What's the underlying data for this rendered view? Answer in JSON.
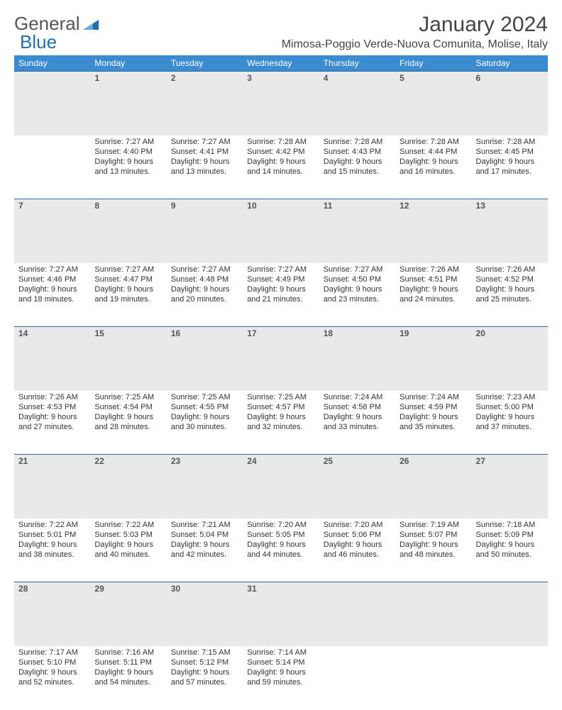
{
  "brand": {
    "part1": "General",
    "part2": "Blue"
  },
  "title": "January 2024",
  "location": "Mimosa-Poggio Verde-Nuova Comunita, Molise, Italy",
  "colors": {
    "header_bg": "#3b8bd0",
    "rule": "#2f6aa0",
    "daynum_bg": "#e9e9e9",
    "brand_blue": "#1f6fb2"
  },
  "weekdays": [
    "Sunday",
    "Monday",
    "Tuesday",
    "Wednesday",
    "Thursday",
    "Friday",
    "Saturday"
  ],
  "weeks": [
    [
      null,
      {
        "n": "1",
        "sr": "7:27 AM",
        "ss": "4:40 PM",
        "dl": "9 hours and 13 minutes."
      },
      {
        "n": "2",
        "sr": "7:27 AM",
        "ss": "4:41 PM",
        "dl": "9 hours and 13 minutes."
      },
      {
        "n": "3",
        "sr": "7:28 AM",
        "ss": "4:42 PM",
        "dl": "9 hours and 14 minutes."
      },
      {
        "n": "4",
        "sr": "7:28 AM",
        "ss": "4:43 PM",
        "dl": "9 hours and 15 minutes."
      },
      {
        "n": "5",
        "sr": "7:28 AM",
        "ss": "4:44 PM",
        "dl": "9 hours and 16 minutes."
      },
      {
        "n": "6",
        "sr": "7:28 AM",
        "ss": "4:45 PM",
        "dl": "9 hours and 17 minutes."
      }
    ],
    [
      {
        "n": "7",
        "sr": "7:27 AM",
        "ss": "4:46 PM",
        "dl": "9 hours and 18 minutes."
      },
      {
        "n": "8",
        "sr": "7:27 AM",
        "ss": "4:47 PM",
        "dl": "9 hours and 19 minutes."
      },
      {
        "n": "9",
        "sr": "7:27 AM",
        "ss": "4:48 PM",
        "dl": "9 hours and 20 minutes."
      },
      {
        "n": "10",
        "sr": "7:27 AM",
        "ss": "4:49 PM",
        "dl": "9 hours and 21 minutes."
      },
      {
        "n": "11",
        "sr": "7:27 AM",
        "ss": "4:50 PM",
        "dl": "9 hours and 23 minutes."
      },
      {
        "n": "12",
        "sr": "7:26 AM",
        "ss": "4:51 PM",
        "dl": "9 hours and 24 minutes."
      },
      {
        "n": "13",
        "sr": "7:26 AM",
        "ss": "4:52 PM",
        "dl": "9 hours and 25 minutes."
      }
    ],
    [
      {
        "n": "14",
        "sr": "7:26 AM",
        "ss": "4:53 PM",
        "dl": "9 hours and 27 minutes."
      },
      {
        "n": "15",
        "sr": "7:25 AM",
        "ss": "4:54 PM",
        "dl": "9 hours and 28 minutes."
      },
      {
        "n": "16",
        "sr": "7:25 AM",
        "ss": "4:55 PM",
        "dl": "9 hours and 30 minutes."
      },
      {
        "n": "17",
        "sr": "7:25 AM",
        "ss": "4:57 PM",
        "dl": "9 hours and 32 minutes."
      },
      {
        "n": "18",
        "sr": "7:24 AM",
        "ss": "4:58 PM",
        "dl": "9 hours and 33 minutes."
      },
      {
        "n": "19",
        "sr": "7:24 AM",
        "ss": "4:59 PM",
        "dl": "9 hours and 35 minutes."
      },
      {
        "n": "20",
        "sr": "7:23 AM",
        "ss": "5:00 PM",
        "dl": "9 hours and 37 minutes."
      }
    ],
    [
      {
        "n": "21",
        "sr": "7:22 AM",
        "ss": "5:01 PM",
        "dl": "9 hours and 38 minutes."
      },
      {
        "n": "22",
        "sr": "7:22 AM",
        "ss": "5:03 PM",
        "dl": "9 hours and 40 minutes."
      },
      {
        "n": "23",
        "sr": "7:21 AM",
        "ss": "5:04 PM",
        "dl": "9 hours and 42 minutes."
      },
      {
        "n": "24",
        "sr": "7:20 AM",
        "ss": "5:05 PM",
        "dl": "9 hours and 44 minutes."
      },
      {
        "n": "25",
        "sr": "7:20 AM",
        "ss": "5:06 PM",
        "dl": "9 hours and 46 minutes."
      },
      {
        "n": "26",
        "sr": "7:19 AM",
        "ss": "5:07 PM",
        "dl": "9 hours and 48 minutes."
      },
      {
        "n": "27",
        "sr": "7:18 AM",
        "ss": "5:09 PM",
        "dl": "9 hours and 50 minutes."
      }
    ],
    [
      {
        "n": "28",
        "sr": "7:17 AM",
        "ss": "5:10 PM",
        "dl": "9 hours and 52 minutes."
      },
      {
        "n": "29",
        "sr": "7:16 AM",
        "ss": "5:11 PM",
        "dl": "9 hours and 54 minutes."
      },
      {
        "n": "30",
        "sr": "7:15 AM",
        "ss": "5:12 PM",
        "dl": "9 hours and 57 minutes."
      },
      {
        "n": "31",
        "sr": "7:14 AM",
        "ss": "5:14 PM",
        "dl": "9 hours and 59 minutes."
      },
      null,
      null,
      null
    ]
  ],
  "labels": {
    "sunrise": "Sunrise:",
    "sunset": "Sunset:",
    "daylight": "Daylight:"
  }
}
